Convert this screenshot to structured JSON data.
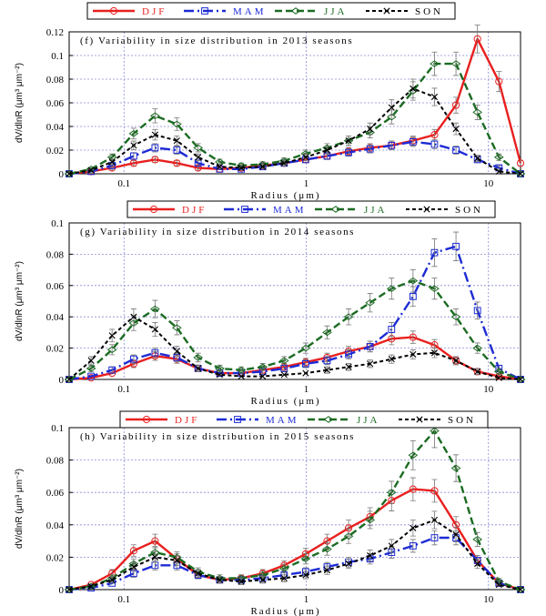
{
  "colors": {
    "DJF": "#e8201f",
    "MAM": "#1d2bd4",
    "JJA": "#1b6b22",
    "SON": "#000000"
  },
  "chart_data": [
    {
      "type": "line",
      "title": "(f)  Variability in size distribution in 2013 seasons",
      "xlabel": "Radius (μm)",
      "ylabel": "dV/dlnR (μm³ μm⁻²)",
      "xscale": "log",
      "xlim": [
        0.05,
        15
      ],
      "ylim": [
        0,
        0.12
      ],
      "xticks": [
        {
          "v": 0.1,
          "label": "0.1"
        },
        {
          "v": 1,
          "label": "1"
        },
        {
          "v": 10,
          "label": "10"
        }
      ],
      "yticks": [
        {
          "v": 0,
          "label": "0"
        },
        {
          "v": 0.02,
          "label": "0.02"
        },
        {
          "v": 0.04,
          "label": "0.04"
        },
        {
          "v": 0.06,
          "label": "0.06"
        },
        {
          "v": 0.08,
          "label": "0.08"
        },
        {
          "v": 0.1,
          "label": "0.1"
        },
        {
          "v": 0.12,
          "label": "0.12"
        }
      ],
      "legend": [
        "DJF",
        "MAM",
        "JJA",
        "SON"
      ],
      "x": [
        0.05,
        0.066,
        0.086,
        0.113,
        0.148,
        0.195,
        0.255,
        0.335,
        0.44,
        0.577,
        0.757,
        0.993,
        1.302,
        1.708,
        2.241,
        2.94,
        3.856,
        5.058,
        6.636,
        8.705,
        11.42,
        15.0
      ],
      "series": [
        {
          "name": "DJF",
          "values": [
            0.0,
            0.002,
            0.005,
            0.009,
            0.012,
            0.009,
            0.005,
            0.004,
            0.005,
            0.007,
            0.009,
            0.012,
            0.015,
            0.019,
            0.022,
            0.024,
            0.028,
            0.033,
            0.058,
            0.114,
            0.078,
            0.009
          ]
        },
        {
          "name": "MAM",
          "values": [
            0.0,
            0.002,
            0.007,
            0.015,
            0.022,
            0.02,
            0.009,
            0.004,
            0.004,
            0.006,
            0.009,
            0.012,
            0.015,
            0.018,
            0.021,
            0.024,
            0.027,
            0.025,
            0.02,
            0.012,
            0.005,
            0.0
          ]
        },
        {
          "name": "JJA",
          "values": [
            0.0,
            0.004,
            0.014,
            0.034,
            0.049,
            0.042,
            0.022,
            0.01,
            0.007,
            0.008,
            0.011,
            0.017,
            0.022,
            0.028,
            0.035,
            0.048,
            0.07,
            0.093,
            0.093,
            0.052,
            0.014,
            0.0
          ]
        },
        {
          "name": "SON",
          "values": [
            0.0,
            0.003,
            0.01,
            0.024,
            0.033,
            0.028,
            0.014,
            0.006,
            0.005,
            0.006,
            0.009,
            0.014,
            0.02,
            0.028,
            0.038,
            0.056,
            0.072,
            0.065,
            0.038,
            0.013,
            0.002,
            0.0
          ]
        }
      ]
    },
    {
      "type": "line",
      "title": "(g)  Variability in size distribution in 2014 seasons",
      "xlabel": "Radius (μm)",
      "ylabel": "dV/dlnR (μm³ μm⁻²)",
      "xscale": "log",
      "xlim": [
        0.05,
        15
      ],
      "ylim": [
        0,
        0.1
      ],
      "xticks": [
        {
          "v": 0.1,
          "label": "0.1"
        },
        {
          "v": 1,
          "label": "1"
        },
        {
          "v": 10,
          "label": "10"
        }
      ],
      "yticks": [
        {
          "v": 0,
          "label": "0"
        },
        {
          "v": 0.02,
          "label": "0.02"
        },
        {
          "v": 0.04,
          "label": "0.04"
        },
        {
          "v": 0.06,
          "label": "0.06"
        },
        {
          "v": 0.08,
          "label": "0.08"
        },
        {
          "v": 0.1,
          "label": "0.1"
        }
      ],
      "legend": [
        "DJF",
        "MAM",
        "JJA",
        "SON"
      ],
      "x": [
        0.05,
        0.066,
        0.086,
        0.113,
        0.148,
        0.195,
        0.255,
        0.335,
        0.44,
        0.577,
        0.757,
        0.993,
        1.302,
        1.708,
        2.241,
        2.94,
        3.856,
        5.058,
        6.636,
        8.705,
        11.42,
        15.0
      ],
      "series": [
        {
          "name": "DJF",
          "values": [
            0.0,
            0.001,
            0.004,
            0.01,
            0.015,
            0.013,
            0.007,
            0.004,
            0.004,
            0.006,
            0.008,
            0.011,
            0.014,
            0.018,
            0.021,
            0.026,
            0.027,
            0.022,
            0.012,
            0.005,
            0.002,
            0.0
          ]
        },
        {
          "name": "MAM",
          "values": [
            0.0,
            0.002,
            0.006,
            0.013,
            0.017,
            0.014,
            0.007,
            0.004,
            0.004,
            0.005,
            0.007,
            0.01,
            0.012,
            0.016,
            0.021,
            0.032,
            0.053,
            0.081,
            0.085,
            0.044,
            0.007,
            0.0
          ]
        },
        {
          "name": "JJA",
          "values": [
            0.0,
            0.007,
            0.019,
            0.036,
            0.045,
            0.033,
            0.014,
            0.007,
            0.006,
            0.008,
            0.012,
            0.02,
            0.03,
            0.04,
            0.049,
            0.058,
            0.063,
            0.058,
            0.04,
            0.02,
            0.005,
            0.0
          ]
        },
        {
          "name": "SON",
          "values": [
            0.0,
            0.012,
            0.028,
            0.04,
            0.032,
            0.018,
            0.007,
            0.003,
            0.002,
            0.002,
            0.003,
            0.004,
            0.006,
            0.008,
            0.01,
            0.013,
            0.016,
            0.017,
            0.012,
            0.005,
            0.001,
            0.0
          ]
        }
      ]
    },
    {
      "type": "line",
      "title": "(h)  Variability in size distribution in 2015 seasons",
      "xlabel": "Radius (μm)",
      "ylabel": "dV/dlnR (μm³ μm⁻²)",
      "xscale": "log",
      "xlim": [
        0.05,
        15
      ],
      "ylim": [
        0,
        0.1
      ],
      "xticks": [
        {
          "v": 0.1,
          "label": "0.1"
        },
        {
          "v": 1,
          "label": "1"
        },
        {
          "v": 10,
          "label": "10"
        }
      ],
      "yticks": [
        {
          "v": 0,
          "label": "0"
        },
        {
          "v": 0.02,
          "label": "0.02"
        },
        {
          "v": 0.04,
          "label": "0.04"
        },
        {
          "v": 0.06,
          "label": "0.06"
        },
        {
          "v": 0.08,
          "label": "0.08"
        },
        {
          "v": 0.1,
          "label": "0.1"
        }
      ],
      "legend": [
        "DJF",
        "MAM",
        "JJA",
        "SON"
      ],
      "x": [
        0.05,
        0.066,
        0.086,
        0.113,
        0.148,
        0.195,
        0.255,
        0.335,
        0.44,
        0.577,
        0.757,
        0.993,
        1.302,
        1.708,
        2.241,
        2.94,
        3.856,
        5.058,
        6.636,
        8.705,
        11.42,
        15.0
      ],
      "series": [
        {
          "name": "DJF",
          "values": [
            0.0,
            0.003,
            0.01,
            0.024,
            0.03,
            0.019,
            0.009,
            0.006,
            0.007,
            0.01,
            0.015,
            0.022,
            0.03,
            0.038,
            0.045,
            0.055,
            0.062,
            0.061,
            0.04,
            0.018,
            0.004,
            0.0
          ]
        },
        {
          "name": "MAM",
          "values": [
            0.0,
            0.001,
            0.004,
            0.01,
            0.015,
            0.015,
            0.009,
            0.006,
            0.006,
            0.007,
            0.009,
            0.011,
            0.014,
            0.017,
            0.019,
            0.023,
            0.027,
            0.032,
            0.032,
            0.018,
            0.004,
            0.0
          ]
        },
        {
          "name": "JJA",
          "values": [
            0.0,
            0.002,
            0.007,
            0.016,
            0.023,
            0.02,
            0.011,
            0.007,
            0.007,
            0.009,
            0.013,
            0.019,
            0.025,
            0.033,
            0.043,
            0.06,
            0.083,
            0.098,
            0.075,
            0.031,
            0.005,
            0.0
          ]
        },
        {
          "name": "SON",
          "values": [
            0.0,
            0.002,
            0.006,
            0.014,
            0.02,
            0.018,
            0.01,
            0.006,
            0.005,
            0.006,
            0.007,
            0.009,
            0.012,
            0.016,
            0.021,
            0.027,
            0.038,
            0.043,
            0.034,
            0.016,
            0.003,
            0.0
          ]
        }
      ]
    }
  ]
}
